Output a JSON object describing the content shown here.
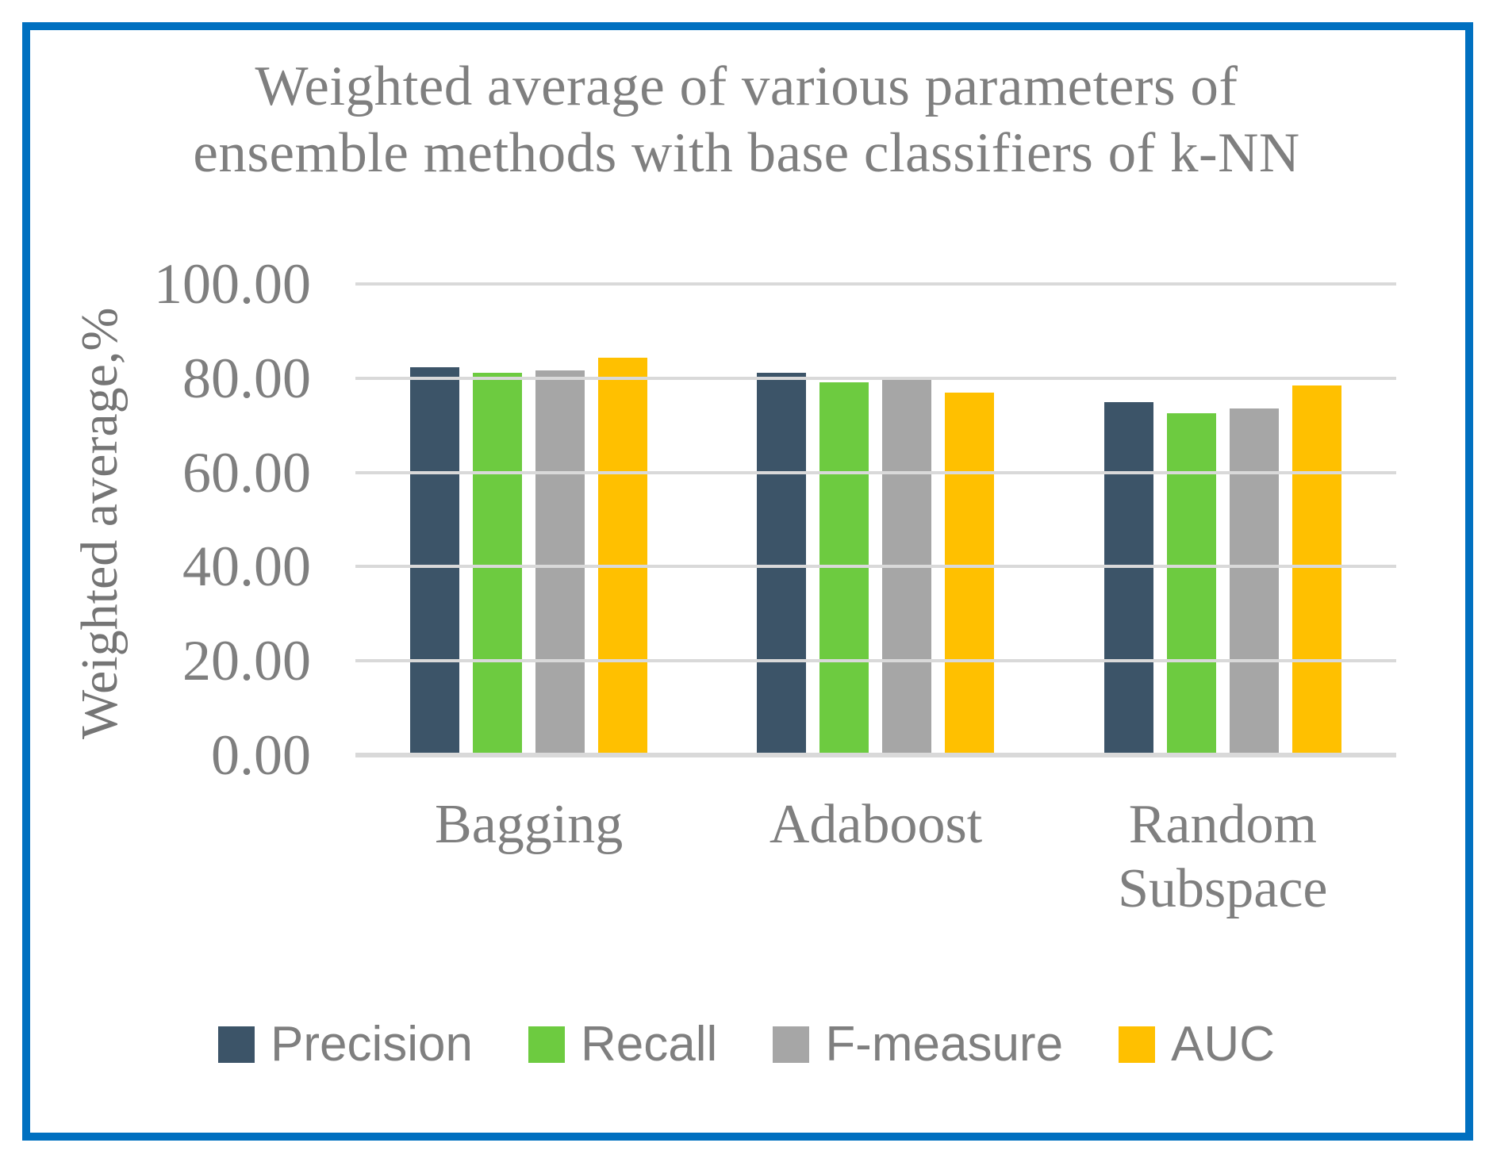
{
  "window": {
    "background": "#FFFFFF",
    "border_color": "#0070C0"
  },
  "chart_data": {
    "type": "bar",
    "title": "Weighted average of various parameters of ensemble methods with base classifiers of k-NN",
    "title_lines": [
      "Weighted average of various parameters of",
      "ensemble methods with base classifiers of k-NN"
    ],
    "ylabel": "Weighted average,%",
    "xlabel": "",
    "categories": [
      "Bagging",
      "Adaboost",
      "Random Subspace"
    ],
    "series": [
      {
        "name": "Precision",
        "color": "#3C5468",
        "values": [
          82.3,
          81.1,
          74.9
        ]
      },
      {
        "name": "Recall",
        "color": "#6DCB40",
        "values": [
          81.1,
          79.1,
          72.6
        ]
      },
      {
        "name": "F-measure",
        "color": "#A6A6A6",
        "values": [
          81.6,
          79.7,
          73.5
        ]
      },
      {
        "name": "AUC",
        "color": "#FFC000",
        "values": [
          84.3,
          76.9,
          78.4
        ]
      }
    ],
    "ylim": [
      0,
      100
    ],
    "ytick_step": 20,
    "ytick_labels": [
      "0.00",
      "20.00",
      "40.00",
      "60.00",
      "80.00",
      "100.00"
    ],
    "grid": true,
    "gridline_color": "#D9D9D9",
    "legend_position": "bottom",
    "text_color": "#7F7F7F"
  }
}
